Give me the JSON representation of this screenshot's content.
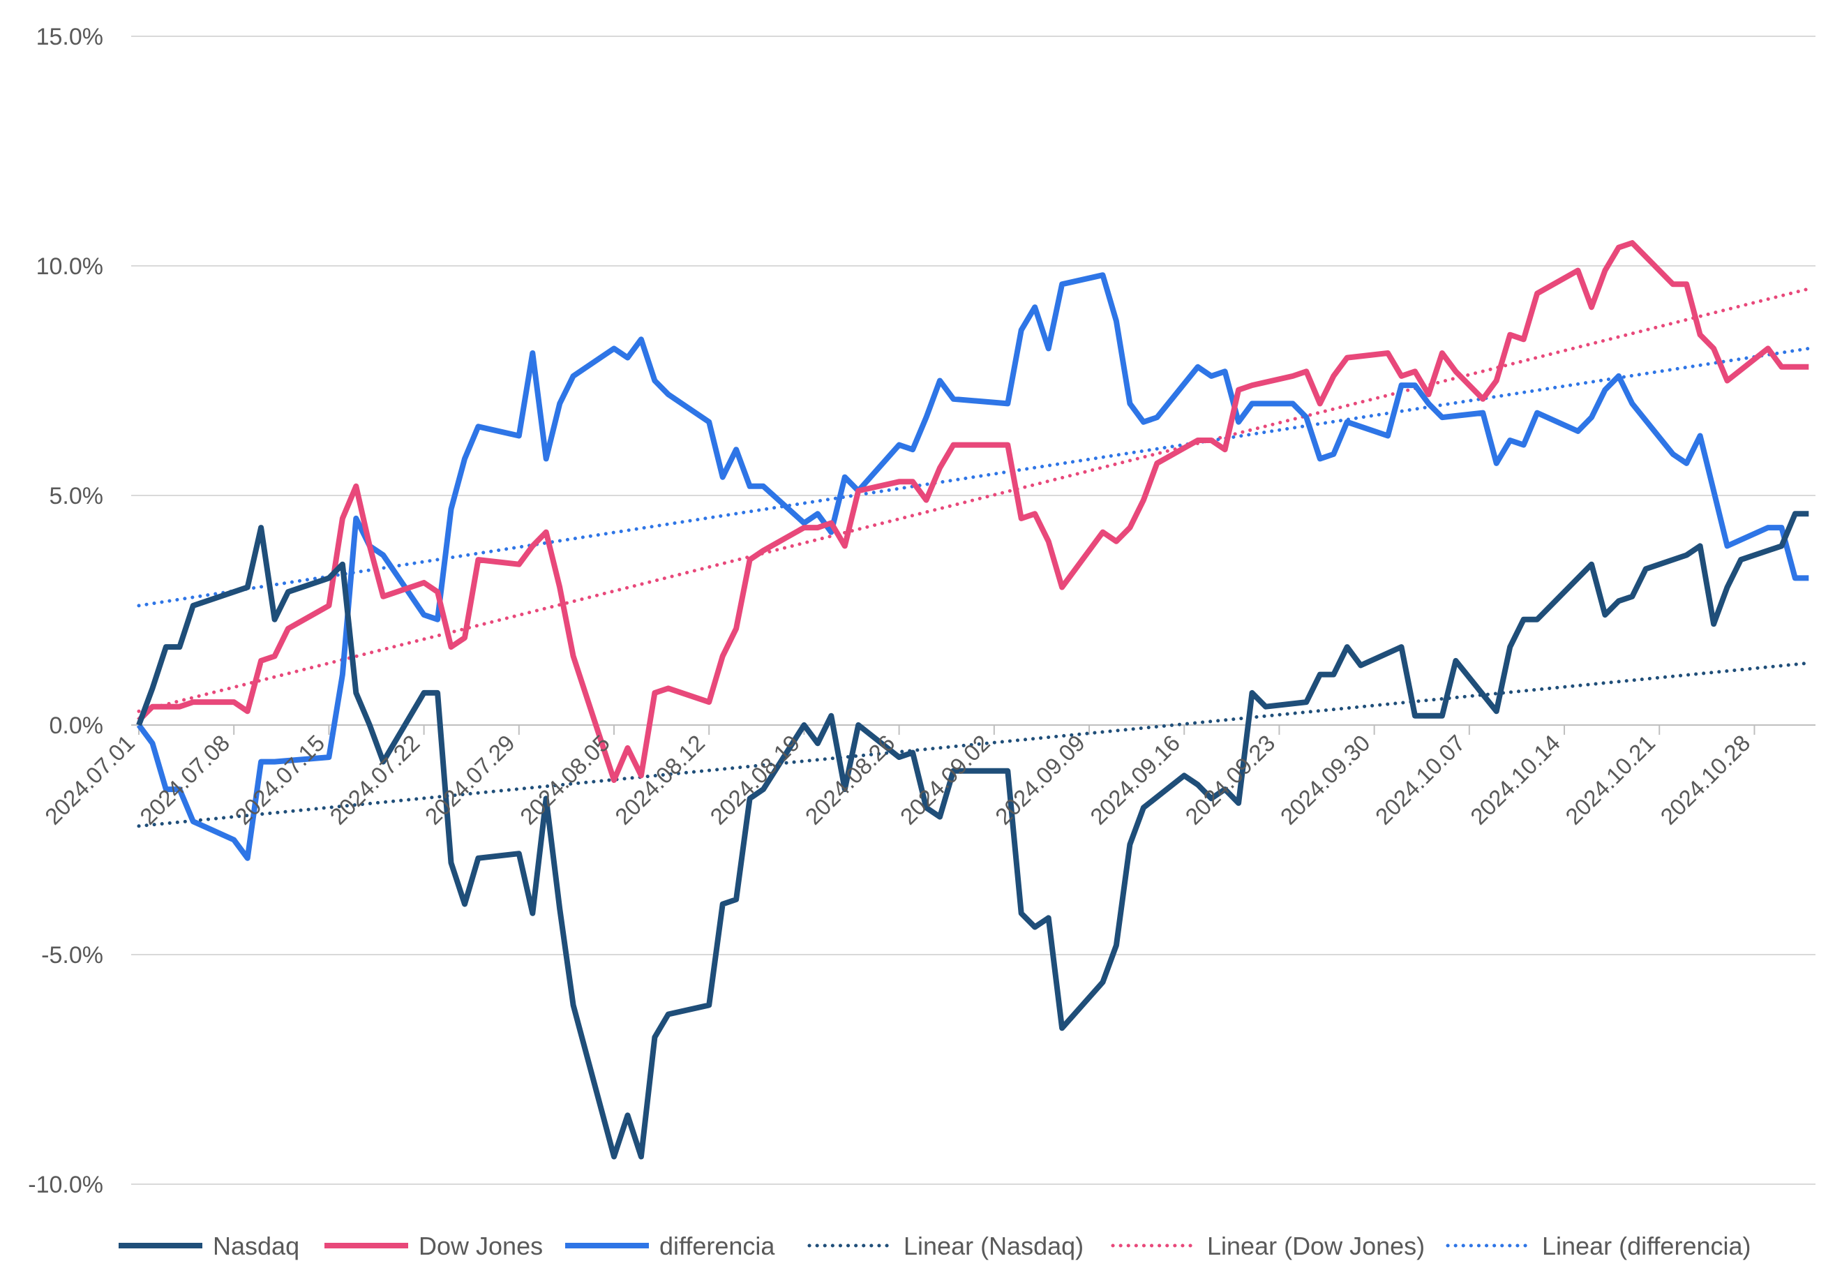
{
  "chart_data": {
    "type": "line",
    "y_axis": {
      "min": -10,
      "max": 15,
      "step": 5,
      "tick_labels": [
        "-10.0%",
        "-5.0%",
        "0.0%",
        "5.0%",
        "10.0%",
        "15.0%"
      ]
    },
    "x_axis": {
      "start_date": "2024-07-01",
      "end_date": "2024-11-01",
      "tick_labels": [
        "2024.07.01",
        "2024.07.08",
        "2024.07.15",
        "2024.07.22",
        "2024.07.29",
        "2024.08.05",
        "2024.08.12",
        "2024.08.19",
        "2024.08.26",
        "2024.09.02",
        "2024.09.09",
        "2024.09.16",
        "2024.09.23",
        "2024.09.30",
        "2024.10.07",
        "2024.10.14",
        "2024.10.21",
        "2024.10.28"
      ]
    },
    "grid": "horizontal",
    "legend_position": "bottom",
    "series": [
      {
        "name": "Nasdaq",
        "color": "#1f4e79",
        "style": "solid",
        "points": [
          [
            "2024-07-01",
            0.0
          ],
          [
            "2024-07-02",
            0.8
          ],
          [
            "2024-07-03",
            1.7
          ],
          [
            "2024-07-04",
            1.7
          ],
          [
            "2024-07-05",
            2.6
          ],
          [
            "2024-07-09",
            3.0
          ],
          [
            "2024-07-10",
            4.3
          ],
          [
            "2024-07-11",
            2.3
          ],
          [
            "2024-07-12",
            2.9
          ],
          [
            "2024-07-15",
            3.2
          ],
          [
            "2024-07-16",
            3.5
          ],
          [
            "2024-07-17",
            0.7
          ],
          [
            "2024-07-18",
            0.0
          ],
          [
            "2024-07-19",
            -0.8
          ],
          [
            "2024-07-22",
            0.7
          ],
          [
            "2024-07-23",
            0.7
          ],
          [
            "2024-07-24",
            -3.0
          ],
          [
            "2024-07-25",
            -3.9
          ],
          [
            "2024-07-26",
            -2.9
          ],
          [
            "2024-07-29",
            -2.8
          ],
          [
            "2024-07-30",
            -4.1
          ],
          [
            "2024-07-31",
            -1.6
          ],
          [
            "2024-08-01",
            -4.0
          ],
          [
            "2024-08-02",
            -6.1
          ],
          [
            "2024-08-05",
            -9.4
          ],
          [
            "2024-08-06",
            -8.5
          ],
          [
            "2024-08-07",
            -9.4
          ],
          [
            "2024-08-08",
            -6.8
          ],
          [
            "2024-08-09",
            -6.3
          ],
          [
            "2024-08-12",
            -6.1
          ],
          [
            "2024-08-13",
            -3.9
          ],
          [
            "2024-08-14",
            -3.8
          ],
          [
            "2024-08-15",
            -1.6
          ],
          [
            "2024-08-16",
            -1.4
          ],
          [
            "2024-08-19",
            0.0
          ],
          [
            "2024-08-20",
            -0.4
          ],
          [
            "2024-08-21",
            0.2
          ],
          [
            "2024-08-22",
            -1.4
          ],
          [
            "2024-08-23",
            0.0
          ],
          [
            "2024-08-26",
            -0.7
          ],
          [
            "2024-08-27",
            -0.6
          ],
          [
            "2024-08-28",
            -1.8
          ],
          [
            "2024-08-29",
            -2.0
          ],
          [
            "2024-08-30",
            -1.0
          ],
          [
            "2024-09-03",
            -1.0
          ],
          [
            "2024-09-04",
            -4.1
          ],
          [
            "2024-09-05",
            -4.4
          ],
          [
            "2024-09-06",
            -4.2
          ],
          [
            "2024-09-07",
            -6.6
          ],
          [
            "2024-09-10",
            -5.6
          ],
          [
            "2024-09-11",
            -4.8
          ],
          [
            "2024-09-12",
            -2.6
          ],
          [
            "2024-09-13",
            -1.8
          ],
          [
            "2024-09-16",
            -1.1
          ],
          [
            "2024-09-17",
            -1.3
          ],
          [
            "2024-09-18",
            -1.6
          ],
          [
            "2024-09-19",
            -1.4
          ],
          [
            "2024-09-20",
            -1.7
          ],
          [
            "2024-09-21",
            0.7
          ],
          [
            "2024-09-22",
            0.4
          ],
          [
            "2024-09-25",
            0.5
          ],
          [
            "2024-09-26",
            1.1
          ],
          [
            "2024-09-27",
            1.1
          ],
          [
            "2024-09-28",
            1.7
          ],
          [
            "2024-09-29",
            1.3
          ],
          [
            "2024-10-02",
            1.7
          ],
          [
            "2024-10-03",
            0.2
          ],
          [
            "2024-10-04",
            0.2
          ],
          [
            "2024-10-05",
            0.2
          ],
          [
            "2024-10-06",
            1.4
          ],
          [
            "2024-10-09",
            0.3
          ],
          [
            "2024-10-10",
            1.7
          ],
          [
            "2024-10-11",
            2.3
          ],
          [
            "2024-10-12",
            2.3
          ],
          [
            "2024-10-13",
            2.6
          ],
          [
            "2024-10-16",
            3.5
          ],
          [
            "2024-10-17",
            2.4
          ],
          [
            "2024-10-18",
            2.7
          ],
          [
            "2024-10-19",
            2.8
          ],
          [
            "2024-10-20",
            3.4
          ],
          [
            "2024-10-23",
            3.7
          ],
          [
            "2024-10-24",
            3.9
          ],
          [
            "2024-10-25",
            2.2
          ],
          [
            "2024-10-26",
            3.0
          ],
          [
            "2024-10-27",
            3.6
          ],
          [
            "2024-10-30",
            3.9
          ],
          [
            "2024-10-31",
            4.6
          ],
          [
            "2024-11-01",
            4.6
          ]
        ]
      },
      {
        "name": "Dow Jones",
        "color": "#e8487a",
        "style": "solid",
        "points": [
          [
            "2024-07-01",
            0.1
          ],
          [
            "2024-07-02",
            0.4
          ],
          [
            "2024-07-03",
            0.4
          ],
          [
            "2024-07-04",
            0.4
          ],
          [
            "2024-07-05",
            0.5
          ],
          [
            "2024-07-08",
            0.5
          ],
          [
            "2024-07-09",
            0.3
          ],
          [
            "2024-07-10",
            1.4
          ],
          [
            "2024-07-11",
            1.5
          ],
          [
            "2024-07-12",
            2.1
          ],
          [
            "2024-07-15",
            2.6
          ],
          [
            "2024-07-16",
            4.5
          ],
          [
            "2024-07-17",
            5.2
          ],
          [
            "2024-07-18",
            3.9
          ],
          [
            "2024-07-19",
            2.8
          ],
          [
            "2024-07-22",
            3.1
          ],
          [
            "2024-07-23",
            2.9
          ],
          [
            "2024-07-24",
            1.7
          ],
          [
            "2024-07-25",
            1.9
          ],
          [
            "2024-07-26",
            3.6
          ],
          [
            "2024-07-29",
            3.5
          ],
          [
            "2024-07-30",
            3.9
          ],
          [
            "2024-07-31",
            4.2
          ],
          [
            "2024-08-01",
            3.0
          ],
          [
            "2024-08-02",
            1.5
          ],
          [
            "2024-08-05",
            -1.2
          ],
          [
            "2024-08-06",
            -0.5
          ],
          [
            "2024-08-07",
            -1.1
          ],
          [
            "2024-08-08",
            0.7
          ],
          [
            "2024-08-09",
            0.8
          ],
          [
            "2024-08-12",
            0.5
          ],
          [
            "2024-08-13",
            1.5
          ],
          [
            "2024-08-14",
            2.1
          ],
          [
            "2024-08-15",
            3.6
          ],
          [
            "2024-08-16",
            3.8
          ],
          [
            "2024-08-19",
            4.3
          ],
          [
            "2024-08-20",
            4.3
          ],
          [
            "2024-08-21",
            4.4
          ],
          [
            "2024-08-22",
            3.9
          ],
          [
            "2024-08-23",
            5.1
          ],
          [
            "2024-08-26",
            5.3
          ],
          [
            "2024-08-27",
            5.3
          ],
          [
            "2024-08-28",
            4.9
          ],
          [
            "2024-08-29",
            5.6
          ],
          [
            "2024-08-30",
            6.1
          ],
          [
            "2024-09-03",
            6.1
          ],
          [
            "2024-09-04",
            4.5
          ],
          [
            "2024-09-05",
            4.6
          ],
          [
            "2024-09-06",
            4.0
          ],
          [
            "2024-09-07",
            3.0
          ],
          [
            "2024-09-10",
            4.2
          ],
          [
            "2024-09-11",
            4.0
          ],
          [
            "2024-09-12",
            4.3
          ],
          [
            "2024-09-13",
            4.9
          ],
          [
            "2024-09-14",
            5.7
          ],
          [
            "2024-09-17",
            6.2
          ],
          [
            "2024-09-18",
            6.2
          ],
          [
            "2024-09-19",
            6.0
          ],
          [
            "2024-09-20",
            7.3
          ],
          [
            "2024-09-21",
            7.4
          ],
          [
            "2024-09-24",
            7.6
          ],
          [
            "2024-09-25",
            7.7
          ],
          [
            "2024-09-26",
            7.0
          ],
          [
            "2024-09-27",
            7.6
          ],
          [
            "2024-09-28",
            8.0
          ],
          [
            "2024-10-01",
            8.1
          ],
          [
            "2024-10-02",
            7.6
          ],
          [
            "2024-10-03",
            7.7
          ],
          [
            "2024-10-04",
            7.2
          ],
          [
            "2024-10-05",
            8.1
          ],
          [
            "2024-10-06",
            7.7
          ],
          [
            "2024-10-08",
            7.1
          ],
          [
            "2024-10-09",
            7.5
          ],
          [
            "2024-10-10",
            8.5
          ],
          [
            "2024-10-11",
            8.4
          ],
          [
            "2024-10-12",
            9.4
          ],
          [
            "2024-10-15",
            9.9
          ],
          [
            "2024-10-16",
            9.1
          ],
          [
            "2024-10-17",
            9.9
          ],
          [
            "2024-10-18",
            10.4
          ],
          [
            "2024-10-19",
            10.5
          ],
          [
            "2024-10-22",
            9.6
          ],
          [
            "2024-10-23",
            9.6
          ],
          [
            "2024-10-24",
            8.5
          ],
          [
            "2024-10-25",
            8.2
          ],
          [
            "2024-10-26",
            7.5
          ],
          [
            "2024-10-29",
            8.2
          ],
          [
            "2024-10-30",
            7.8
          ],
          [
            "2024-11-01",
            7.8
          ]
        ]
      },
      {
        "name": "differencia",
        "color": "#2e75e6",
        "style": "solid",
        "points": [
          [
            "2024-07-01",
            0.0
          ],
          [
            "2024-07-02",
            -0.4
          ],
          [
            "2024-07-03",
            -1.4
          ],
          [
            "2024-07-04",
            -1.4
          ],
          [
            "2024-07-05",
            -2.1
          ],
          [
            "2024-07-08",
            -2.5
          ],
          [
            "2024-07-09",
            -2.9
          ],
          [
            "2024-07-10",
            -0.8
          ],
          [
            "2024-07-11",
            -0.8
          ],
          [
            "2024-07-15",
            -0.7
          ],
          [
            "2024-07-16",
            1.1
          ],
          [
            "2024-07-17",
            4.5
          ],
          [
            "2024-07-18",
            3.9
          ],
          [
            "2024-07-19",
            3.7
          ],
          [
            "2024-07-22",
            2.4
          ],
          [
            "2024-07-23",
            2.3
          ],
          [
            "2024-07-24",
            4.7
          ],
          [
            "2024-07-25",
            5.8
          ],
          [
            "2024-07-26",
            6.5
          ],
          [
            "2024-07-29",
            6.3
          ],
          [
            "2024-07-30",
            8.1
          ],
          [
            "2024-07-31",
            5.8
          ],
          [
            "2024-08-01",
            7.0
          ],
          [
            "2024-08-02",
            7.6
          ],
          [
            "2024-08-05",
            8.2
          ],
          [
            "2024-08-06",
            8.0
          ],
          [
            "2024-08-07",
            8.4
          ],
          [
            "2024-08-08",
            7.5
          ],
          [
            "2024-08-09",
            7.2
          ],
          [
            "2024-08-12",
            6.6
          ],
          [
            "2024-08-13",
            5.4
          ],
          [
            "2024-08-14",
            6.0
          ],
          [
            "2024-08-15",
            5.2
          ],
          [
            "2024-08-16",
            5.2
          ],
          [
            "2024-08-19",
            4.4
          ],
          [
            "2024-08-20",
            4.6
          ],
          [
            "2024-08-21",
            4.2
          ],
          [
            "2024-08-22",
            5.4
          ],
          [
            "2024-08-23",
            5.1
          ],
          [
            "2024-08-26",
            6.1
          ],
          [
            "2024-08-27",
            6.0
          ],
          [
            "2024-08-28",
            6.7
          ],
          [
            "2024-08-29",
            7.5
          ],
          [
            "2024-08-30",
            7.1
          ],
          [
            "2024-09-03",
            7.0
          ],
          [
            "2024-09-04",
            8.6
          ],
          [
            "2024-09-05",
            9.1
          ],
          [
            "2024-09-06",
            8.2
          ],
          [
            "2024-09-07",
            9.6
          ],
          [
            "2024-09-10",
            9.8
          ],
          [
            "2024-09-11",
            8.8
          ],
          [
            "2024-09-12",
            7.0
          ],
          [
            "2024-09-13",
            6.6
          ],
          [
            "2024-09-14",
            6.7
          ],
          [
            "2024-09-17",
            7.8
          ],
          [
            "2024-09-18",
            7.6
          ],
          [
            "2024-09-19",
            7.7
          ],
          [
            "2024-09-20",
            6.6
          ],
          [
            "2024-09-21",
            7.0
          ],
          [
            "2024-09-24",
            7.0
          ],
          [
            "2024-09-25",
            6.7
          ],
          [
            "2024-09-26",
            5.8
          ],
          [
            "2024-09-27",
            5.9
          ],
          [
            "2024-09-28",
            6.6
          ],
          [
            "2024-10-01",
            6.3
          ],
          [
            "2024-10-02",
            7.4
          ],
          [
            "2024-10-03",
            7.4
          ],
          [
            "2024-10-04",
            7.0
          ],
          [
            "2024-10-05",
            6.7
          ],
          [
            "2024-10-08",
            6.8
          ],
          [
            "2024-10-09",
            5.7
          ],
          [
            "2024-10-10",
            6.2
          ],
          [
            "2024-10-11",
            6.1
          ],
          [
            "2024-10-12",
            6.8
          ],
          [
            "2024-10-15",
            6.4
          ],
          [
            "2024-10-16",
            6.7
          ],
          [
            "2024-10-17",
            7.3
          ],
          [
            "2024-10-18",
            7.6
          ],
          [
            "2024-10-19",
            7.0
          ],
          [
            "2024-10-22",
            5.9
          ],
          [
            "2024-10-23",
            5.7
          ],
          [
            "2024-10-24",
            6.3
          ],
          [
            "2024-10-25",
            5.1
          ],
          [
            "2024-10-26",
            3.9
          ],
          [
            "2024-10-29",
            4.3
          ],
          [
            "2024-10-30",
            4.3
          ],
          [
            "2024-10-31",
            3.2
          ],
          [
            "2024-11-01",
            3.2
          ]
        ]
      },
      {
        "name": "Linear (Nasdaq)",
        "color": "#1f4e79",
        "style": "dotted",
        "points": [
          [
            "2024-07-01",
            -2.2
          ],
          [
            "2024-11-01",
            1.35
          ]
        ]
      },
      {
        "name": "Linear (Dow Jones)",
        "color": "#e8487a",
        "style": "dotted",
        "points": [
          [
            "2024-07-01",
            0.3
          ],
          [
            "2024-11-01",
            9.5
          ]
        ]
      },
      {
        "name": "Linear (differencia)",
        "color": "#2e75e6",
        "style": "dotted",
        "points": [
          [
            "2024-07-01",
            2.6
          ],
          [
            "2024-11-01",
            8.2
          ]
        ]
      }
    ]
  }
}
